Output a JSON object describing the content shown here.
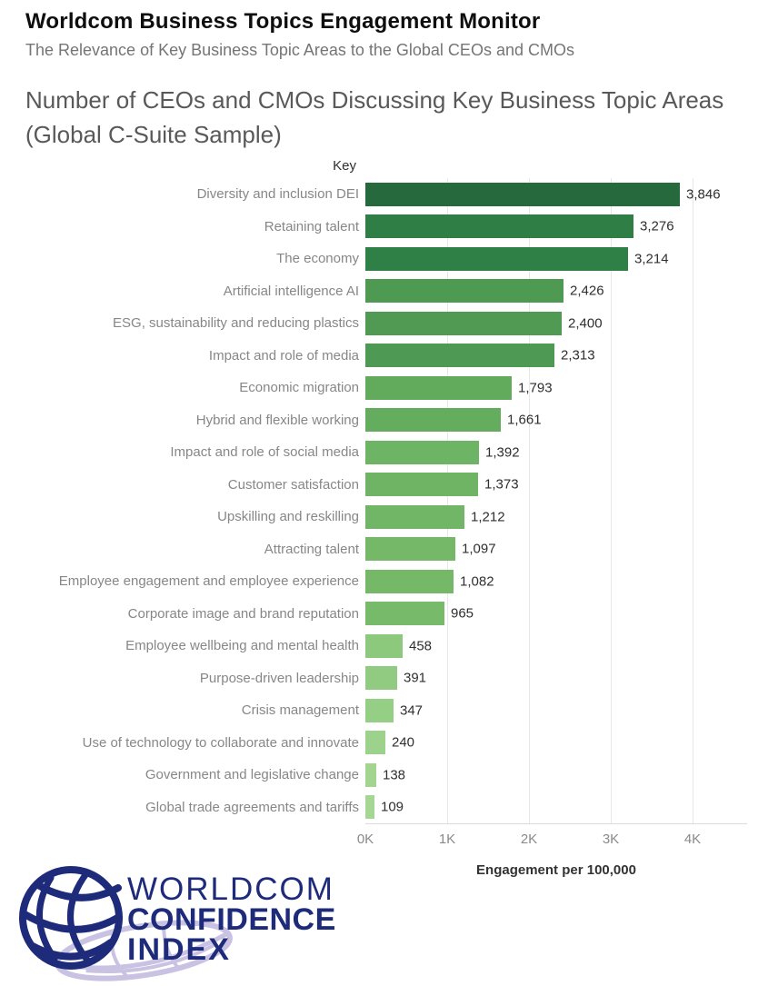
{
  "header": {
    "title": "Worldcom Business Topics Engagement Monitor",
    "subtitle": "The Relevance of Key Business Topic Areas to the Global CEOs and CMOs"
  },
  "chart_data": {
    "type": "bar",
    "orientation": "horizontal",
    "title": "Number of CEOs and CMOs Discussing Key Business Topic Areas (Global C-Suite Sample)",
    "title_lines": [
      "Number of CEOs and CMOs Discussing Key Business Topic Areas",
      "(Global C-Suite Sample)"
    ],
    "key_header": "Key",
    "categories": [
      "Diversity and inclusion DEI",
      "Retaining talent",
      "The economy",
      "Artificial intelligence AI",
      "ESG, sustainability and reducing plastics",
      "Impact and role of media",
      "Economic migration",
      "Hybrid and flexible working",
      "Impact and role of social media",
      "Customer satisfaction",
      "Upskilling and reskilling",
      "Attracting talent",
      "Employee engagement and employee experience",
      "Corporate image and brand reputation",
      "Employee wellbeing and mental health",
      "Purpose-driven leadership",
      "Crisis management",
      "Use of technology to collaborate and innovate",
      "Government and legislative change",
      "Global trade agreements and tariffs"
    ],
    "values": [
      3846,
      3276,
      3214,
      2426,
      2400,
      2313,
      1793,
      1661,
      1392,
      1373,
      1212,
      1097,
      1082,
      965,
      458,
      391,
      347,
      240,
      138,
      109
    ],
    "value_labels": [
      "3,846",
      "3,276",
      "3,214",
      "2,426",
      "2,400",
      "2,313",
      "1,793",
      "1,661",
      "1,392",
      "1,373",
      "1,212",
      "1,097",
      "1,082",
      "965",
      "458",
      "391",
      "347",
      "240",
      "138",
      "109"
    ],
    "bar_colors": [
      "#26693C",
      "#2E7E45",
      "#2F8046",
      "#4F9A53",
      "#509A54",
      "#4E9953",
      "#62AB5C",
      "#65AD5E",
      "#6DB464",
      "#6EB464",
      "#71B666",
      "#74B868",
      "#74B868",
      "#77BA6A",
      "#8CC97D",
      "#91CB81",
      "#95CE85",
      "#9DD28C",
      "#A3D591",
      "#A5D694"
    ],
    "xlabel": "Engagement per 100,000",
    "x_ticks": [
      "0K",
      "1K",
      "2K",
      "3K",
      "4K"
    ],
    "xlim": [
      0,
      4650
    ],
    "grid": "vertical-light-gray",
    "legend": "none"
  },
  "logo": {
    "line1": "WORLDCOM",
    "line2": "CONFIDENCE",
    "line3": "INDEX",
    "navy": "#1e2b7a",
    "lavender": "#c9c2e2"
  }
}
